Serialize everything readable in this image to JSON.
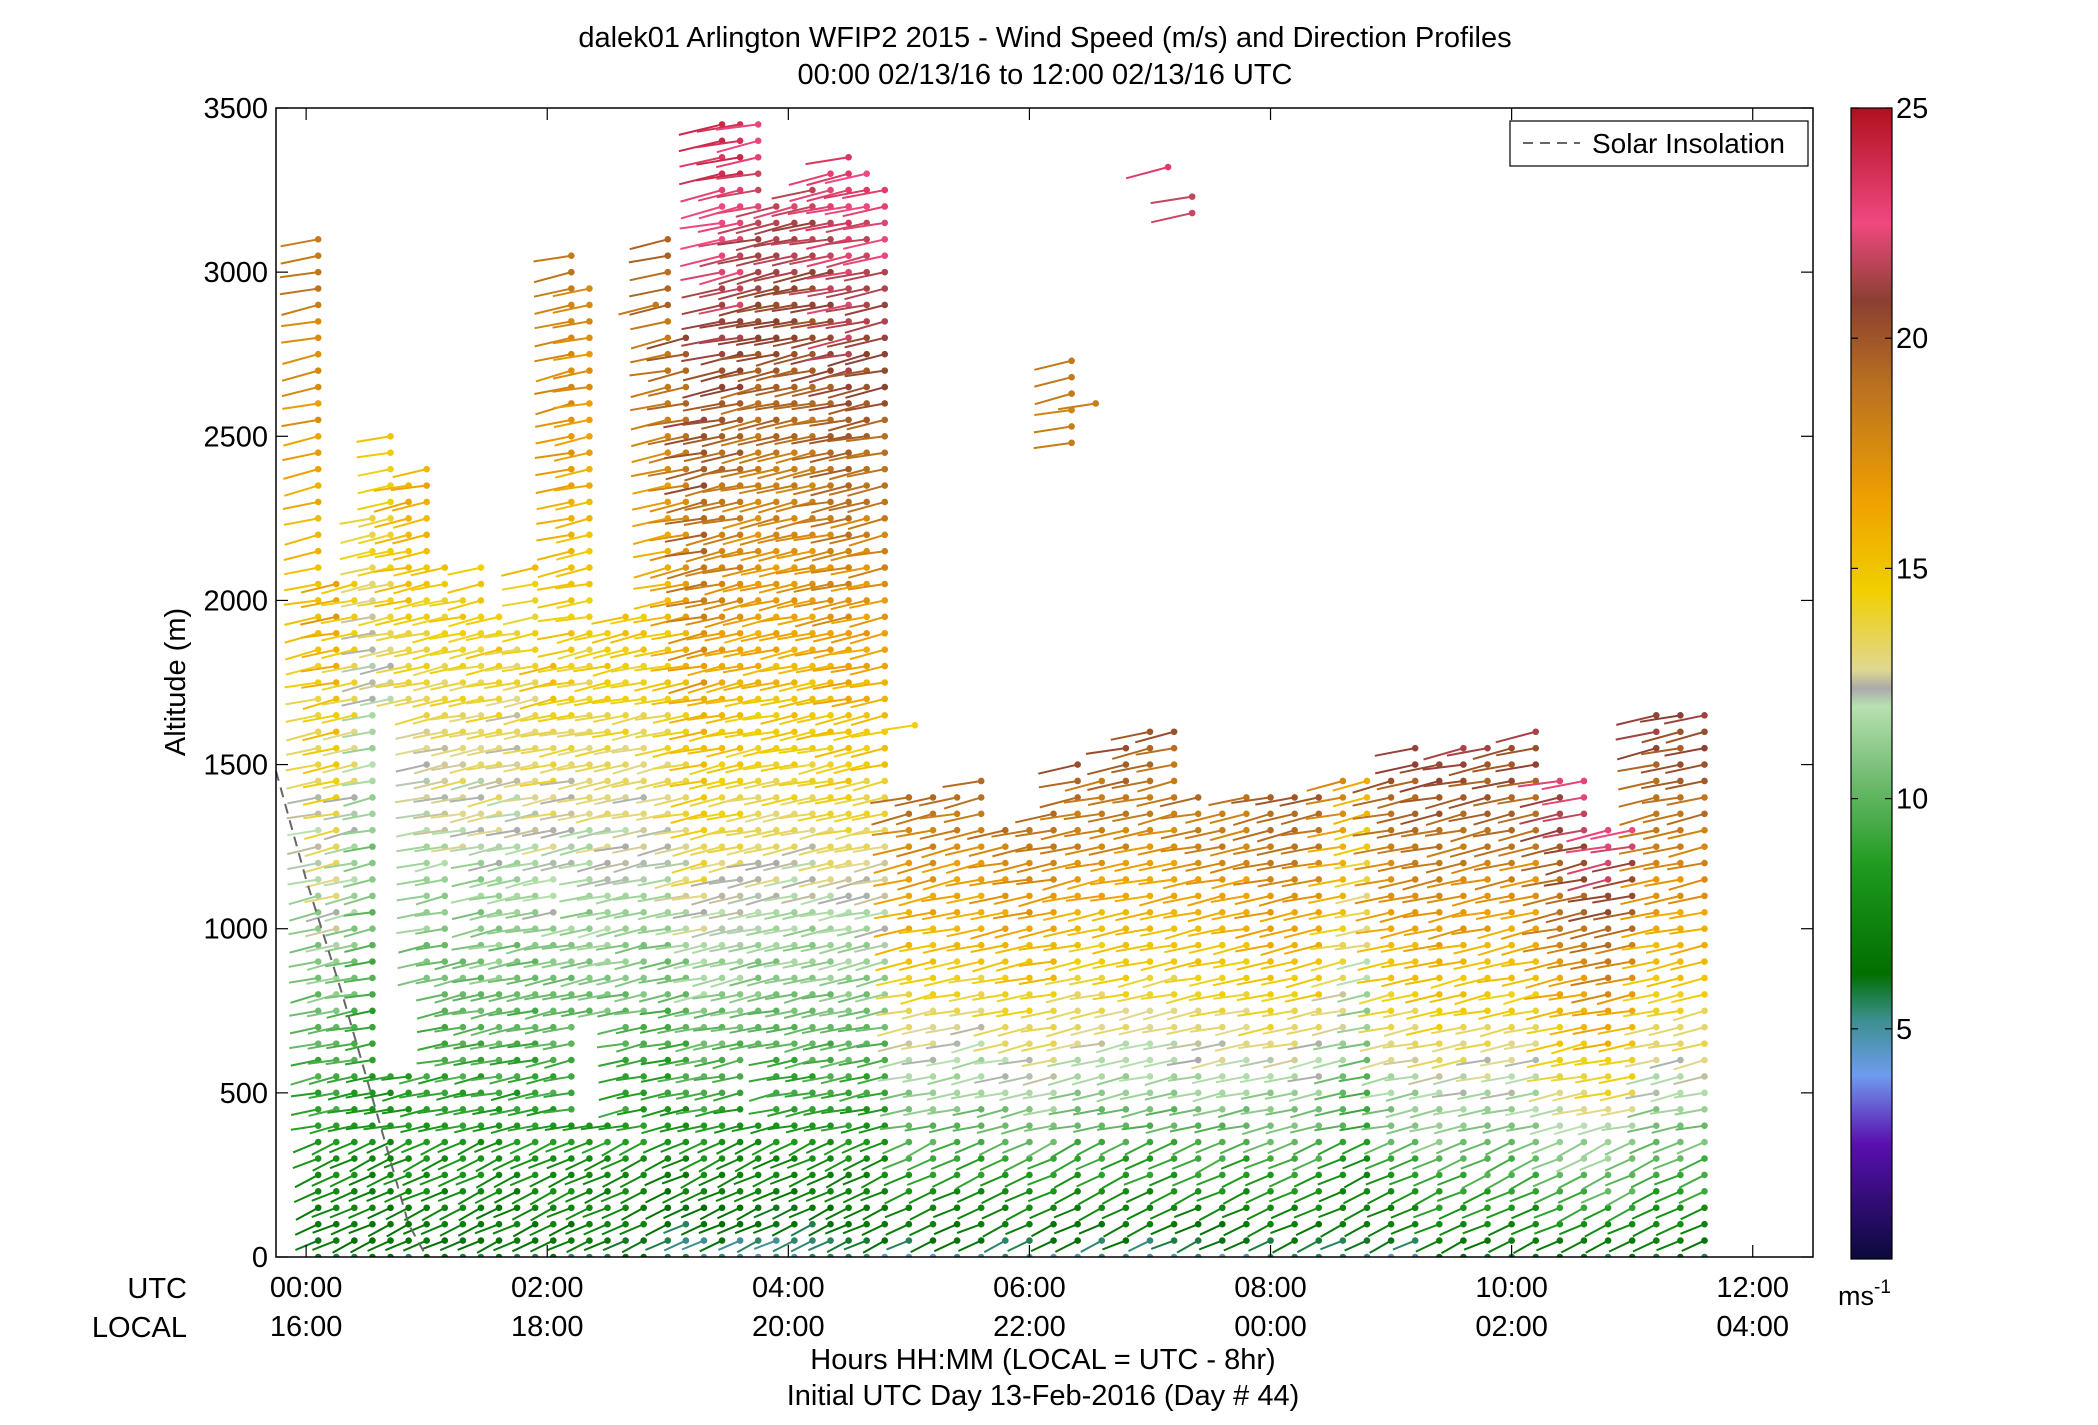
{
  "chart_data": {
    "type": "scatter",
    "title": "dalek01 Arlington WFIP2 2015 - Wind Speed (m/s) and Direction Profiles",
    "subtitle": "00:00 02/13/16 to 12:00 02/13/16  UTC",
    "ylabel": "Altitude (m)",
    "xlabel": "Hours HH:MM  (LOCAL = UTC - 8hr)",
    "xlabel2": "Initial UTC Day 13-Feb-2016 (Day # 44)",
    "row_label_utc": "UTC",
    "row_label_local": "LOCAL",
    "ylim": [
      0,
      3500
    ],
    "xlim": [
      -0.25,
      12.5
    ],
    "y_ticks": [
      0,
      500,
      1000,
      1500,
      2000,
      2500,
      3000,
      3500
    ],
    "y_tick_labels": [
      "0",
      "500",
      "1000",
      "1500",
      "2000",
      "2500",
      "3000",
      "3500"
    ],
    "x_ticks": [
      0,
      2,
      4,
      6,
      8,
      10,
      12
    ],
    "x_tick_labels_utc": [
      "00:00",
      "02:00",
      "04:00",
      "06:00",
      "08:00",
      "10:00",
      "12:00"
    ],
    "x_tick_labels_local": [
      "16:00",
      "18:00",
      "20:00",
      "22:00",
      "00:00",
      "02:00",
      "04:00"
    ],
    "legend": {
      "label": "Solar Insolation",
      "position": "top-right"
    },
    "solar_insolation": {
      "x": [
        -0.25,
        0.0,
        0.3,
        0.6,
        0.85,
        1.0
      ],
      "y": [
        1480,
        1150,
        800,
        420,
        100,
        0
      ]
    },
    "colorbar": {
      "ticks": [
        5,
        10,
        15,
        20,
        25
      ],
      "tick_labels": [
        "5",
        "10",
        "15",
        "20",
        "25"
      ],
      "unit": "ms",
      "unit_exp": "-1",
      "range": [
        0,
        25
      ],
      "stops": [
        {
          "v": 0,
          "c": "#0a0a3a"
        },
        {
          "v": 2.5,
          "c": "#5a0fb0"
        },
        {
          "v": 4.0,
          "c": "#6f9bef"
        },
        {
          "v": 5.2,
          "c": "#3c8f8f"
        },
        {
          "v": 6.2,
          "c": "#006f00"
        },
        {
          "v": 8.5,
          "c": "#1e9a1e"
        },
        {
          "v": 10.5,
          "c": "#73bd73"
        },
        {
          "v": 12.0,
          "c": "#b8e0b0"
        },
        {
          "v": 12.4,
          "c": "#aaaaaa"
        },
        {
          "v": 12.8,
          "c": "#e0d890"
        },
        {
          "v": 14.5,
          "c": "#f0d000"
        },
        {
          "v": 16.5,
          "c": "#efa000"
        },
        {
          "v": 19.0,
          "c": "#b87020"
        },
        {
          "v": 20.8,
          "c": "#8a4030"
        },
        {
          "v": 22.5,
          "c": "#f04880"
        },
        {
          "v": 25,
          "c": "#b01020"
        }
      ]
    },
    "profiles": [
      {
        "t": 0.1,
        "top": 3130,
        "bot": 0,
        "gap": [],
        "lo": 6,
        "hi": 19
      },
      {
        "t": 0.25,
        "top": 2060,
        "bot": 0,
        "gap": [],
        "lo": 6,
        "hi": 17
      },
      {
        "t": 0.4,
        "top": 2050,
        "bot": 0,
        "gap": [],
        "lo": 6,
        "hi": 15
      },
      {
        "t": 0.55,
        "top": 2270,
        "bot": 0,
        "gap": [],
        "lo": 6,
        "hi": 14
      },
      {
        "t": 0.7,
        "top": 2500,
        "bot": 0,
        "gap": [
          [
            580,
            1650
          ]
        ],
        "lo": 6,
        "hi": 15
      },
      {
        "t": 0.85,
        "top": 2370,
        "bot": 0,
        "gap": [
          [
            580,
            1650
          ]
        ],
        "lo": 6,
        "hi": 16
      },
      {
        "t": 1.0,
        "top": 2400,
        "bot": 0,
        "gap": [
          [
            580,
            800
          ]
        ],
        "lo": 6,
        "hi": 16
      },
      {
        "t": 1.15,
        "top": 2140,
        "bot": 0,
        "gap": [],
        "lo": 6,
        "hi": 15
      },
      {
        "t": 1.3,
        "top": 2000,
        "bot": 0,
        "gap": [
          [
            950,
            1200
          ]
        ],
        "lo": 6,
        "hi": 15
      },
      {
        "t": 1.45,
        "top": 2140,
        "bot": 0,
        "gap": [],
        "lo": 6,
        "hi": 15
      },
      {
        "t": 1.6,
        "top": 1950,
        "bot": 0,
        "gap": [],
        "lo": 6,
        "hi": 15
      },
      {
        "t": 1.75,
        "top": 1900,
        "bot": 0,
        "gap": [],
        "lo": 6,
        "hi": 14
      },
      {
        "t": 1.9,
        "top": 2140,
        "bot": 0,
        "gap": [],
        "lo": 6,
        "hi": 15
      },
      {
        "t": 2.05,
        "top": 1800,
        "bot": 0,
        "gap": [],
        "lo": 6,
        "hi": 15
      },
      {
        "t": 2.2,
        "top": 3080,
        "bot": 0,
        "gap": [
          [
            1050,
            1150
          ]
        ],
        "lo": 6,
        "hi": 19
      },
      {
        "t": 2.35,
        "top": 2980,
        "bot": 0,
        "gap": [
          [
            450,
            700
          ]
        ],
        "lo": 6,
        "hi": 18
      },
      {
        "t": 2.5,
        "top": 1900,
        "bot": 0,
        "gap": [
          [
            450,
            700
          ]
        ],
        "lo": 6,
        "hi": 15
      },
      {
        "t": 2.65,
        "top": 1950,
        "bot": 0,
        "gap": [],
        "lo": 6,
        "hi": 15
      },
      {
        "t": 2.8,
        "top": 1950,
        "bot": 0,
        "gap": [],
        "lo": 6,
        "hi": 15
      },
      {
        "t": 3.0,
        "top": 3100,
        "bot": 0,
        "gap": [],
        "lo": 5,
        "hi": 20
      },
      {
        "t": 3.15,
        "top": 2800,
        "bot": 0,
        "gap": [],
        "lo": 5,
        "hi": 20
      },
      {
        "t": 3.3,
        "top": 2560,
        "bot": 0,
        "gap": [],
        "lo": 5,
        "hi": 21
      },
      {
        "t": 3.45,
        "top": 3450,
        "bot": 0,
        "gap": [],
        "lo": 5,
        "hi": 24
      },
      {
        "t": 3.6,
        "top": 3460,
        "bot": 0,
        "gap": [],
        "lo": 5,
        "hi": 24
      },
      {
        "t": 3.75,
        "top": 3470,
        "bot": 0,
        "gap": [
          [
            420,
            600
          ]
        ],
        "lo": 5,
        "hi": 23
      },
      {
        "t": 3.9,
        "top": 3200,
        "bot": 0,
        "gap": [],
        "lo": 5,
        "hi": 22
      },
      {
        "t": 4.05,
        "top": 3200,
        "bot": 0,
        "gap": [],
        "lo": 5,
        "hi": 22
      },
      {
        "t": 4.2,
        "top": 3250,
        "bot": 0,
        "gap": [],
        "lo": 5,
        "hi": 22
      },
      {
        "t": 4.35,
        "top": 3340,
        "bot": 0,
        "gap": [],
        "lo": 5,
        "hi": 23
      },
      {
        "t": 4.5,
        "top": 3380,
        "bot": 0,
        "gap": [],
        "lo": 5,
        "hi": 24
      },
      {
        "t": 4.65,
        "top": 3320,
        "bot": 0,
        "gap": [],
        "lo": 5,
        "hi": 23
      },
      {
        "t": 4.8,
        "top": 3260,
        "bot": 0,
        "gap": [],
        "lo": 5,
        "hi": 23
      },
      {
        "t": 5.0,
        "top": 1400,
        "bot": 0,
        "gap": [],
        "lo": 5,
        "hi": 19
      },
      {
        "t": 5.2,
        "top": 1410,
        "bot": 0,
        "gap": [],
        "lo": 5,
        "hi": 19
      },
      {
        "t": 5.4,
        "top": 1440,
        "bot": 0,
        "gap": [],
        "lo": 5,
        "hi": 19
      },
      {
        "t": 5.6,
        "top": 1460,
        "bot": 0,
        "gap": [],
        "lo": 5,
        "hi": 19
      },
      {
        "t": 5.8,
        "top": 1340,
        "bot": 0,
        "gap": [],
        "lo": 5,
        "hi": 19
      },
      {
        "t": 6.0,
        "top": 1320,
        "bot": 0,
        "gap": [],
        "lo": 5,
        "hi": 19
      },
      {
        "t": 6.2,
        "top": 1380,
        "bot": 0,
        "gap": [],
        "lo": 5,
        "hi": 20
      },
      {
        "t": 6.4,
        "top": 1520,
        "bot": 0,
        "gap": [],
        "lo": 5,
        "hi": 20
      },
      {
        "t": 6.6,
        "top": 1470,
        "bot": 0,
        "gap": [],
        "lo": 5,
        "hi": 19
      },
      {
        "t": 6.8,
        "top": 1560,
        "bot": 0,
        "gap": [],
        "lo": 5,
        "hi": 20
      },
      {
        "t": 7.0,
        "top": 1600,
        "bot": 0,
        "gap": [],
        "lo": 5,
        "hi": 20
      },
      {
        "t": 7.2,
        "top": 1620,
        "bot": 0,
        "gap": [],
        "lo": 5,
        "hi": 20
      },
      {
        "t": 7.4,
        "top": 1400,
        "bot": 0,
        "gap": [],
        "lo": 5,
        "hi": 19
      },
      {
        "t": 7.6,
        "top": 1380,
        "bot": 0,
        "gap": [],
        "lo": 5,
        "hi": 19
      },
      {
        "t": 7.8,
        "top": 1410,
        "bot": 0,
        "gap": [],
        "lo": 5,
        "hi": 19
      },
      {
        "t": 8.0,
        "top": 1410,
        "bot": 0,
        "gap": [],
        "lo": 5,
        "hi": 20
      },
      {
        "t": 8.2,
        "top": 1410,
        "bot": 0,
        "gap": [],
        "lo": 5,
        "hi": 20
      },
      {
        "t": 8.4,
        "top": 1430,
        "bot": 0,
        "gap": [],
        "lo": 5,
        "hi": 20
      },
      {
        "t": 8.6,
        "top": 1480,
        "bot": 0,
        "gap": [],
        "lo": 5,
        "hi": 18
      },
      {
        "t": 8.8,
        "top": 1490,
        "bot": 0,
        "gap": [],
        "lo": 5,
        "hi": 16
      },
      {
        "t": 9.0,
        "top": 1470,
        "bot": 0,
        "gap": [],
        "lo": 5,
        "hi": 20
      },
      {
        "t": 9.2,
        "top": 1580,
        "bot": 0,
        "gap": [],
        "lo": 5,
        "hi": 21
      },
      {
        "t": 9.4,
        "top": 1500,
        "bot": 0,
        "gap": [],
        "lo": 6,
        "hi": 21
      },
      {
        "t": 9.6,
        "top": 1570,
        "bot": 0,
        "gap": [],
        "lo": 6,
        "hi": 21
      },
      {
        "t": 9.8,
        "top": 1580,
        "bot": 0,
        "gap": [],
        "lo": 6,
        "hi": 21
      },
      {
        "t": 10.0,
        "top": 1580,
        "bot": 0,
        "gap": [],
        "lo": 6,
        "hi": 21
      },
      {
        "t": 10.2,
        "top": 1620,
        "bot": 0,
        "gap": [],
        "lo": 6,
        "hi": 21
      },
      {
        "t": 10.4,
        "top": 1450,
        "bot": 0,
        "gap": [],
        "lo": 6,
        "hi": 22
      },
      {
        "t": 10.6,
        "top": 1450,
        "bot": 0,
        "gap": [],
        "lo": 6,
        "hi": 23
      },
      {
        "t": 10.8,
        "top": 1320,
        "bot": 0,
        "gap": [],
        "lo": 6,
        "hi": 23
      },
      {
        "t": 11.0,
        "top": 1310,
        "bot": 0,
        "gap": [],
        "lo": 6,
        "hi": 22
      },
      {
        "t": 11.2,
        "top": 1650,
        "bot": 0,
        "gap": [],
        "lo": 6,
        "hi": 21
      },
      {
        "t": 11.4,
        "top": 1660,
        "bot": 0,
        "gap": [],
        "lo": 6,
        "hi": 21
      },
      {
        "t": 11.6,
        "top": 1660,
        "bot": 0,
        "gap": [],
        "lo": 6,
        "hi": 21
      }
    ],
    "isolated": [
      {
        "t": 6.35,
        "top": 2740,
        "bot": 2480,
        "lo": 18,
        "hi": 19
      },
      {
        "t": 6.55,
        "top": 2600,
        "bot": 2600,
        "lo": 18,
        "hi": 18
      },
      {
        "t": 7.15,
        "top": 3320,
        "bot": 3320,
        "lo": 23,
        "hi": 23
      },
      {
        "t": 7.35,
        "top": 3270,
        "bot": 3180,
        "lo": 22,
        "hi": 22
      },
      {
        "t": 2.9,
        "top": 2900,
        "bot": 2900,
        "lo": 18,
        "hi": 18
      },
      {
        "t": 5.05,
        "top": 1620,
        "bot": 1620,
        "lo": 15,
        "hi": 15
      }
    ]
  }
}
